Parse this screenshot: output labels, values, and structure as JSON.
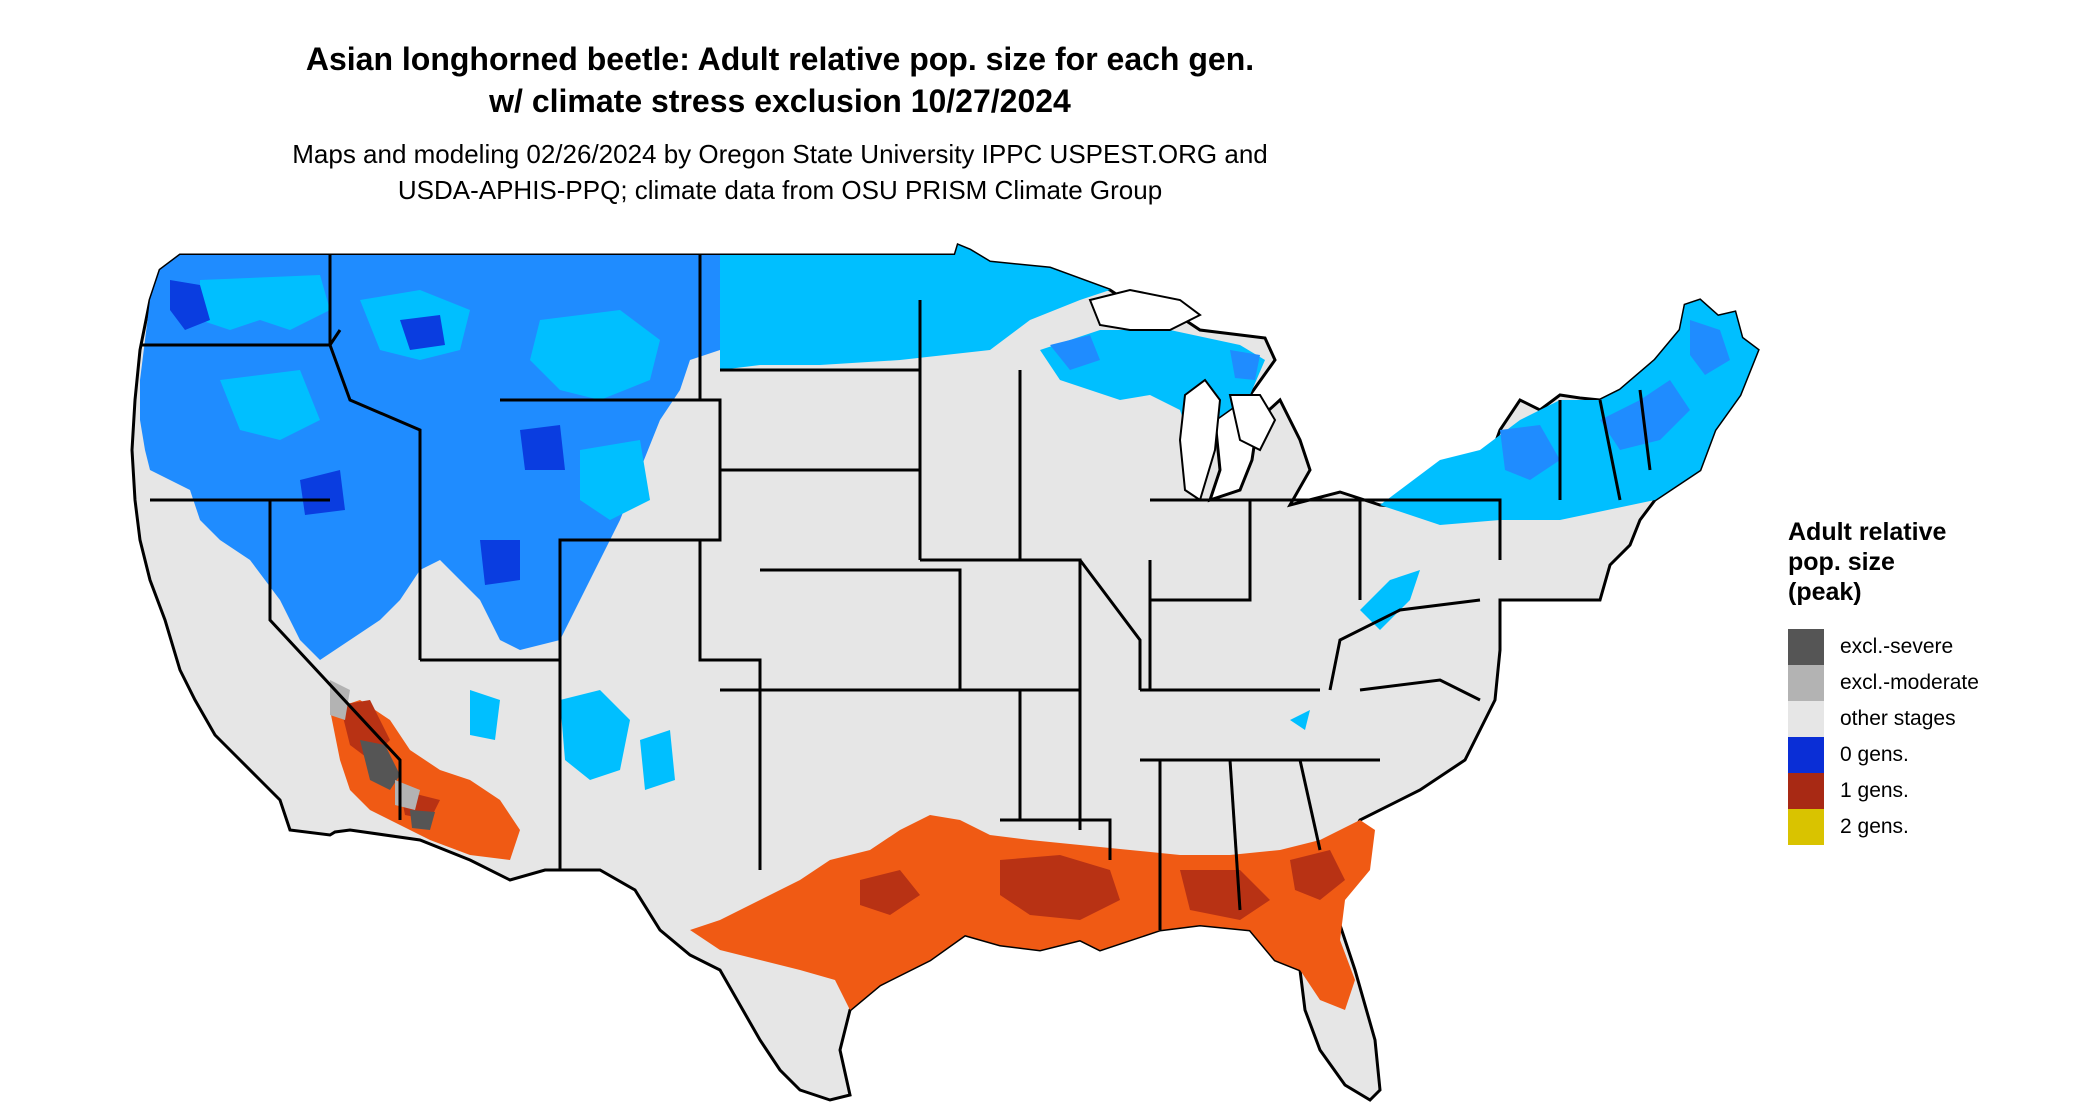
{
  "title": {
    "line1": "Asian longhorned beetle: Adult relative pop. size for each gen.",
    "line2": "w/ climate stress exclusion 10/27/2024"
  },
  "subtitle": {
    "line1": "Maps and modeling 02/26/2024 by Oregon State University IPPC USPEST.ORG and",
    "line2": "USDA-APHIS-PPQ; climate data from OSU PRISM Climate Group"
  },
  "legend": {
    "title_line1": "Adult relative",
    "title_line2": "pop. size",
    "title_line3": "(peak)",
    "items": [
      {
        "label": "excl.-severe",
        "color": "#555555"
      },
      {
        "label": "excl.-moderate",
        "color": "#b3b3b3"
      },
      {
        "label": "other stages",
        "color": "#e6e6e6"
      },
      {
        "label": "0 gens.",
        "color": "#0a2ed6"
      },
      {
        "label": "1 gens.",
        "color": "#a82914"
      },
      {
        "label": "2 gens.",
        "color": "#d9c300"
      }
    ]
  },
  "map_colors": {
    "land": "#e6e6e6",
    "zero_gen_light": "#00bfff",
    "zero_gen_mid": "#1f8cff",
    "zero_gen_dark": "#0a3de0",
    "one_gen_light": "#f05a14",
    "one_gen_dark": "#b83214",
    "excl_severe": "#555555",
    "excl_moderate": "#b3b3b3",
    "border": "#000000"
  }
}
